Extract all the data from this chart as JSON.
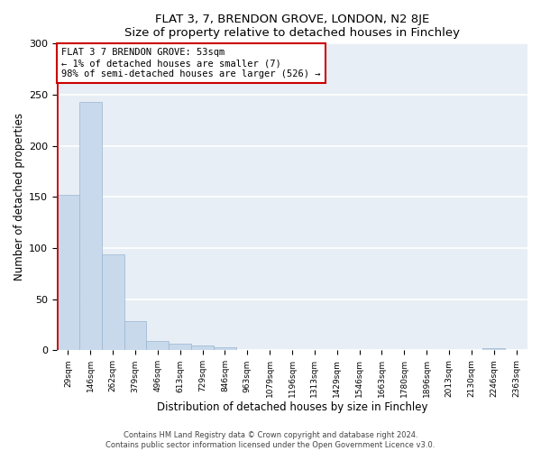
{
  "title": "FLAT 3, 7, BRENDON GROVE, LONDON, N2 8JE",
  "subtitle": "Size of property relative to detached houses in Finchley",
  "xlabel": "Distribution of detached houses by size in Finchley",
  "ylabel": "Number of detached properties",
  "bar_labels": [
    "29sqm",
    "146sqm",
    "262sqm",
    "379sqm",
    "496sqm",
    "613sqm",
    "729sqm",
    "846sqm",
    "963sqm",
    "1079sqm",
    "1196sqm",
    "1313sqm",
    "1429sqm",
    "1546sqm",
    "1663sqm",
    "1780sqm",
    "1896sqm",
    "2013sqm",
    "2130sqm",
    "2246sqm",
    "2363sqm"
  ],
  "bar_values": [
    152,
    243,
    94,
    29,
    9,
    7,
    5,
    3,
    0,
    0,
    0,
    0,
    0,
    0,
    0,
    0,
    0,
    0,
    0,
    2,
    0
  ],
  "bar_color": "#c8d9ec",
  "bar_edge_color": "#9ab5d0",
  "ylim": [
    0,
    300
  ],
  "yticks": [
    0,
    50,
    100,
    150,
    200,
    250,
    300
  ],
  "annotation_box_text": "FLAT 3 7 BRENDON GROVE: 53sqm\n← 1% of detached houses are smaller (7)\n98% of semi-detached houses are larger (526) →",
  "annotation_box_color": "#ffffff",
  "annotation_box_edge_color": "#cc0000",
  "vline_color": "#cc0000",
  "footer_line1": "Contains HM Land Registry data © Crown copyright and database right 2024.",
  "footer_line2": "Contains public sector information licensed under the Open Government Licence v3.0.",
  "plot_bg_color": "#e8eef5",
  "fig_bg_color": "#ffffff",
  "grid_color": "#ffffff"
}
